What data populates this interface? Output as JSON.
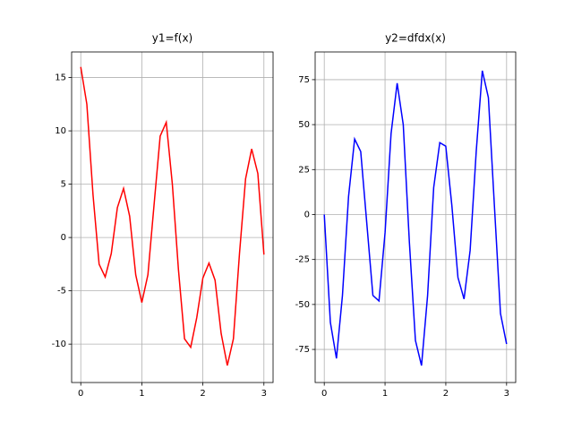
{
  "chart_data": [
    {
      "type": "line",
      "title": "y1=f(x)",
      "color": "#ff0000",
      "grid": true,
      "x": [
        0,
        0.1,
        0.2,
        0.3,
        0.4,
        0.5,
        0.6,
        0.7,
        0.8,
        0.9,
        1.0,
        1.1,
        1.2,
        1.3,
        1.4,
        1.5,
        1.6,
        1.7,
        1.8,
        1.9,
        2.0,
        2.1,
        2.2,
        2.3,
        2.4,
        2.5,
        2.6,
        2.7,
        2.8,
        2.9,
        3.0
      ],
      "values": [
        16,
        12.5,
        4,
        -2.5,
        -3.7,
        -1.5,
        2.8,
        4.6,
        2,
        -3.5,
        -6.1,
        -3.5,
        3,
        9.5,
        10.8,
        5,
        -3,
        -9.5,
        -10.3,
        -7.5,
        -3.8,
        -2.4,
        -4,
        -9,
        -12,
        -9.5,
        -1.5,
        5.5,
        8.3,
        6,
        -1.6
      ],
      "xlim": [
        -0.15,
        3.15
      ],
      "xticks": [
        0,
        1,
        2,
        3
      ],
      "ylim": [
        -13.6,
        17.4
      ],
      "yticks": [
        -10,
        -5,
        0,
        5,
        10,
        15
      ]
    },
    {
      "type": "line",
      "title": "y2=dfdx(x)",
      "color": "#0000ff",
      "grid": true,
      "x": [
        0,
        0.1,
        0.2,
        0.3,
        0.4,
        0.5,
        0.6,
        0.7,
        0.8,
        0.9,
        1.0,
        1.1,
        1.2,
        1.3,
        1.4,
        1.5,
        1.6,
        1.7,
        1.8,
        1.9,
        2.0,
        2.1,
        2.2,
        2.3,
        2.4,
        2.5,
        2.6,
        2.7,
        2.8,
        2.9,
        3.0
      ],
      "values": [
        0,
        -60,
        -80,
        -45,
        10,
        42,
        35,
        -5,
        -45,
        -48,
        -10,
        45,
        73,
        50,
        -15,
        -70,
        -84,
        -45,
        15,
        40,
        38,
        5,
        -35,
        -47,
        -20,
        35,
        80,
        65,
        5,
        -55,
        -72
      ],
      "xlim": [
        -0.15,
        3.15
      ],
      "xticks": [
        0,
        1,
        2,
        3
      ],
      "ylim": [
        -93.4,
        90.4
      ],
      "yticks": [
        -75,
        -50,
        -25,
        0,
        25,
        50,
        75
      ]
    }
  ]
}
